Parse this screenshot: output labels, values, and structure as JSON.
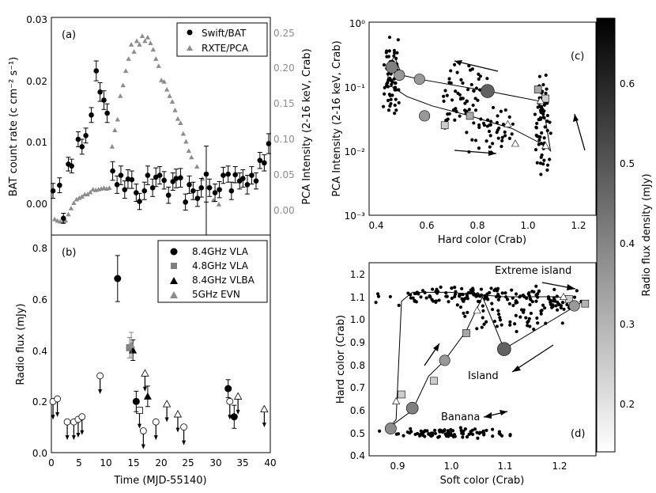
{
  "chart_data": [
    {
      "id": "a",
      "type": "scatter",
      "panel_label": "(a)",
      "xlabel": "",
      "ylabel": "BAT count rate (c cm⁻² s⁻¹)",
      "ylabel_right": "PCA Intensity (2-16 keV, Crab)",
      "xlim": [
        0,
        40
      ],
      "ylim": [
        -0.005,
        0.03
      ],
      "ylim_right": [
        -0.017,
        0.288
      ],
      "yticks": [
        "0.00",
        "0.01",
        "0.02",
        "0.03"
      ],
      "yticks_right": [
        "0.00",
        "0.05",
        "0.10",
        "0.15",
        "0.20",
        "0.25"
      ],
      "legend": {
        "position": "top-right",
        "entries": [
          "Swift/BAT",
          "RXTE/PCA"
        ]
      },
      "series": [
        {
          "name": "Swift/BAT",
          "color": "#000000",
          "marker": "circle",
          "x": [
            0.3,
            1.5,
            2.2,
            3.1,
            3.7,
            4.9,
            5.6,
            6.3,
            7.3,
            8.2,
            8.9,
            9.6,
            10.2,
            11.2,
            12.0,
            12.7,
            13.4,
            14.0,
            14.7,
            15.5,
            16.1,
            17.0,
            17.6,
            18.5,
            19.1,
            19.8,
            20.6,
            21.4,
            22.2,
            22.8,
            23.6,
            24.5,
            25.2,
            25.9,
            26.7,
            27.4,
            28.3,
            28.9,
            29.9,
            30.7,
            31.4,
            32.3,
            32.9,
            33.6,
            34.4,
            35.0,
            35.8,
            36.6,
            37.4,
            38.1,
            38.9,
            39.7
          ],
          "y": [
            0.0021,
            0.003,
            -0.0023,
            0.0064,
            0.0061,
            0.0104,
            0.0092,
            0.011,
            0.0143,
            0.0214,
            0.018,
            0.0167,
            0.0146,
            0.0053,
            0.0031,
            0.0046,
            0.0023,
            0.004,
            0.0039,
            0.0018,
            0.0004,
            0.0021,
            0.0046,
            0.0026,
            0.0043,
            0.0046,
            0.0038,
            0.0014,
            0.0036,
            0.0041,
            0.0042,
            0.0003,
            0.0031,
            0.0021,
            0.0009,
            0.0026,
            0.0048,
            0.0026,
            0.0018,
            0.0023,
            0.0046,
            0.0048,
            0.0021,
            0.0047,
            0.0037,
            0.0041,
            0.0031,
            0.0046,
            0.0037,
            0.007,
            0.0066,
            0.0097
          ],
          "yerr": [
            0.0012,
            0.0012,
            0.0008,
            0.0011,
            0.0011,
            0.0012,
            0.0012,
            0.0012,
            0.0012,
            0.0016,
            0.0015,
            0.0015,
            0.0015,
            0.0015,
            0.0014,
            0.0015,
            0.0014,
            0.0015,
            0.0014,
            0.0014,
            0.0013,
            0.0014,
            0.0015,
            0.0014,
            0.0015,
            0.0014,
            0.0014,
            0.0013,
            0.0014,
            0.0015,
            0.0015,
            0.0013,
            0.0014,
            0.0014,
            0.0013,
            0.0015,
            0.0045,
            0.0014,
            0.0014,
            0.0013,
            0.0013,
            0.0013,
            0.0014,
            0.0013,
            0.0013,
            0.0014,
            0.0015,
            0.0014,
            0.0013,
            0.0013,
            0.0013,
            0.0016
          ]
        },
        {
          "name": "RXTE/PCA",
          "color": "#8c8c8c",
          "marker": "triangle",
          "axis": "right",
          "x": [
            0.6,
            1.1,
            1.6,
            2.1,
            2.6,
            3.1,
            3.6,
            4.1,
            4.6,
            5.1,
            5.6,
            6.1,
            6.6,
            7.1,
            7.6,
            8.1,
            8.6,
            9.1,
            9.6,
            10.1,
            10.6,
            11.1,
            11.6,
            12.1,
            12.6,
            13.1,
            13.6,
            14.1,
            14.6,
            15.1,
            15.6,
            16.1,
            16.6,
            17.1,
            17.6,
            18.1,
            18.6,
            19.1,
            19.6,
            20.1,
            20.6,
            21.1,
            21.6,
            22.1,
            22.6,
            23.1,
            23.6,
            24.1,
            24.6,
            25.1,
            25.6,
            26.6,
            27.6,
            28.6,
            29.6,
            30.6
          ],
          "y": [
            0.0053,
            0.003,
            0.002,
            0.0013,
            0.0035,
            0.012,
            0.0205,
            0.028,
            0.033,
            0.035,
            0.037,
            0.04,
            0.04,
            0.043,
            0.047,
            0.046,
            0.047,
            0.048,
            0.049,
            0.048,
            0.049,
            0.107,
            0.13,
            0.145,
            0.178,
            0.193,
            0.213,
            0.23,
            0.25,
            0.24,
            0.255,
            0.25,
            0.262,
            0.255,
            0.26,
            0.252,
            0.243,
            0.23,
            0.22,
            0.2,
            0.198,
            0.187,
            0.178,
            0.17,
            0.158,
            0.146,
            0.14,
            0.125,
            0.114,
            0.101,
            0.092,
            0.079,
            0.062,
            0.05,
            0.032,
            0.026
          ]
        }
      ]
    },
    {
      "id": "b",
      "type": "scatter",
      "panel_label": "(b)",
      "xlabel": "Time (MJD-55140)",
      "ylabel": "Radio flux (mJy)",
      "xlim": [
        0,
        40
      ],
      "ylim": [
        0,
        0.85
      ],
      "xticks": [
        "0",
        "5",
        "10",
        "15",
        "20",
        "25",
        "30",
        "35",
        "40"
      ],
      "yticks": [
        "0.0",
        "0.2",
        "0.4",
        "0.6",
        "0.8"
      ],
      "legend": {
        "position": "top-right",
        "entries": [
          "8.4GHz VLA",
          "4.8GHz VLA",
          "8.4GHz VLBA",
          "5GHz EVN"
        ]
      },
      "detections": [
        {
          "series": "8.4GHz VLA",
          "x": [
            12.1,
            15.5,
            32.3,
            33.4
          ],
          "y": [
            0.68,
            0.2,
            0.25,
            0.14
          ],
          "yerr": [
            0.09,
            0.04,
            0.035,
            0.045
          ]
        },
        {
          "series": "4.8GHz VLA",
          "x": [
            14.3
          ],
          "y": [
            0.41
          ],
          "yerr": [
            0.04
          ]
        },
        {
          "series": "8.4GHz VLBA",
          "x": [
            14.9,
            17.6
          ],
          "y": [
            0.4,
            0.22
          ],
          "yerr": [
            0.04,
            0.04
          ]
        },
        {
          "series": "5GHz EVN",
          "x": [
            14.6
          ],
          "y": [
            0.42
          ],
          "yerr": [
            0.05
          ]
        }
      ],
      "upper_limits": [
        {
          "marker": "circle",
          "x": [
            0.3,
            1.1,
            2.9,
            4.1,
            4.9,
            5.6,
            8.9,
            16.8,
            19.1,
            24.2,
            32.6
          ],
          "y": [
            0.2,
            0.21,
            0.12,
            0.12,
            0.13,
            0.14,
            0.3,
            0.085,
            0.12,
            0.1,
            0.2
          ]
        },
        {
          "marker": "triangle",
          "x": [
            17.1,
            21.1,
            23.1,
            34.1,
            38.9
          ],
          "y": [
            0.31,
            0.19,
            0.15,
            0.22,
            0.17
          ]
        },
        {
          "marker": "square",
          "x": [
            16.1
          ],
          "y": [
            0.165
          ]
        }
      ]
    },
    {
      "id": "c",
      "type": "scatter",
      "panel_label": "(c)",
      "xlabel": "Hard color (Crab)",
      "ylabel": "PCA Intensity (2-16 keV, Crab)",
      "xlim": [
        0.4,
        1.3
      ],
      "yscale": "log",
      "ylim": [
        0.001,
        1
      ],
      "xticks": [
        "0.4",
        "0.6",
        "0.8",
        "1.0",
        "1.2"
      ],
      "yticks": [
        "10⁻³",
        "10⁻²",
        "10⁻¹",
        "10⁰"
      ],
      "track": {
        "x": [
          0.47,
          0.48,
          0.5,
          0.53,
          0.6,
          0.87,
          1.07,
          1.1,
          1.12,
          1.1,
          0.97,
          0.8,
          0.65,
          0.55,
          0.49,
          0.47
        ],
        "y": [
          0.1,
          0.2,
          0.3,
          0.15,
          0.13,
          0.085,
          0.06,
          0.03,
          0.01,
          0.012,
          0.022,
          0.035,
          0.05,
          0.07,
          0.1,
          0.1
        ]
      },
      "markers": [
        {
          "x": 0.87,
          "y": 0.085,
          "shade": 0.62
        },
        {
          "x": 0.6,
          "y": 0.13,
          "shade": 0.4
        },
        {
          "x": 0.52,
          "y": 0.15,
          "shade": 0.4
        },
        {
          "x": 0.49,
          "y": 0.2,
          "shade": 0.5
        },
        {
          "x": 0.62,
          "y": 0.035,
          "shade": 0.4
        },
        {
          "x": 0.8,
          "y": 0.035,
          "shade": 0.33
        },
        {
          "x": 1.07,
          "y": 0.09,
          "shade": 0.35
        },
        {
          "x": 1.1,
          "y": 0.065,
          "shade": 0.2
        },
        {
          "x": 0.7,
          "y": 0.025,
          "shade": 0.2
        },
        {
          "x": 1.08,
          "y": 0.06,
          "shade": 0.1
        },
        {
          "x": 0.95,
          "y": 0.026,
          "shade": 0.1
        },
        {
          "x": 1.1,
          "y": 0.012,
          "shade": 0.1
        },
        {
          "x": 0.98,
          "y": 0.013,
          "shade": 0.1
        }
      ]
    },
    {
      "id": "d",
      "type": "scatter",
      "panel_label": "(d)",
      "xlabel": "Soft color (Crab)",
      "ylabel": "Hard color (Crab)",
      "xlim": [
        0.85,
        1.27
      ],
      "ylim": [
        0.4,
        1.25
      ],
      "xticks": [
        "0.9",
        "1.0",
        "1.1",
        "1.2"
      ],
      "yticks": [
        "0.4",
        "0.5",
        "0.6",
        "0.7",
        "0.8",
        "0.9",
        "1.0",
        "1.1",
        "1.2"
      ],
      "annotations": [
        "Extreme island",
        "Island",
        "Banana"
      ],
      "track": {
        "x": [
          0.89,
          0.93,
          0.96,
          0.99,
          1.03,
          1.05,
          1.06,
          1.1,
          1.24,
          1.2,
          1.1,
          1.0,
          0.93,
          0.91,
          0.9,
          0.89
        ],
        "y": [
          0.53,
          0.6,
          0.75,
          0.82,
          0.95,
          1.05,
          1.1,
          0.87,
          1.07,
          1.1,
          1.1,
          1.12,
          1.12,
          1.08,
          0.56,
          0.53
        ]
      },
      "markers": [
        {
          "x": 1.1,
          "y": 0.87,
          "shade": 0.62
        },
        {
          "x": 0.93,
          "y": 0.61,
          "shade": 0.5
        },
        {
          "x": 0.89,
          "y": 0.52,
          "shade": 0.45
        },
        {
          "x": 0.99,
          "y": 0.82,
          "shade": 0.4
        },
        {
          "x": 1.03,
          "y": 0.94,
          "shade": 0.35
        },
        {
          "x": 0.97,
          "y": 0.73,
          "shade": 0.2
        },
        {
          "x": 0.91,
          "y": 0.67,
          "shade": 0.2
        },
        {
          "x": 0.9,
          "y": 0.64,
          "shade": 0.15
        },
        {
          "x": 1.22,
          "y": 1.09,
          "shade": 0.2
        },
        {
          "x": 1.25,
          "y": 1.07,
          "shade": 0.3
        },
        {
          "x": 1.23,
          "y": 1.06,
          "shade": 0.4
        },
        {
          "x": 1.05,
          "y": 1.04,
          "shade": 0.1
        },
        {
          "x": 1.21,
          "y": 1.1,
          "shade": 0.1
        }
      ]
    },
    {
      "id": "colorbar",
      "type": "colorbar",
      "label": "Radio flux density (mJy)",
      "range": [
        0.14,
        0.68
      ],
      "ticks": [
        "0.2",
        "0.3",
        "0.4",
        "0.5",
        "0.6"
      ]
    }
  ]
}
